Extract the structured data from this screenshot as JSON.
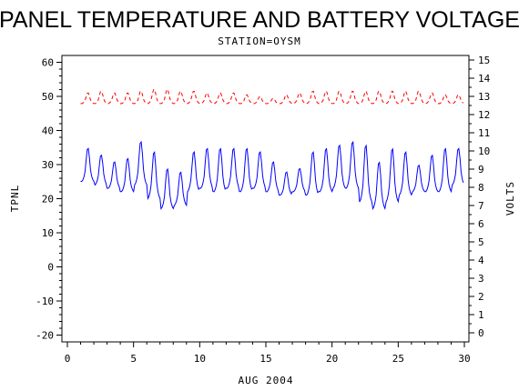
{
  "chart_data": {
    "type": "line",
    "title": "PANEL TEMPERATURE AND BATTERY VOLTAGE",
    "subtitle": "STATION=OYSM",
    "xlabel": "AUG 2004",
    "ylabel_left": "TPNL",
    "ylabel_right": "VOLTS",
    "xlim": [
      0,
      30
    ],
    "ylim_left": [
      -22,
      62
    ],
    "ylim_right": [
      -0.5,
      15.25
    ],
    "x_ticks": [
      0,
      5,
      10,
      15,
      20,
      25,
      30
    ],
    "y_left_ticks": [
      -20,
      -10,
      0,
      10,
      20,
      30,
      40,
      50,
      60
    ],
    "y_right_ticks": [
      0,
      1,
      2,
      3,
      4,
      5,
      6,
      7,
      8,
      9,
      10,
      11,
      12,
      13,
      14,
      15
    ],
    "series": [
      {
        "axis": "left",
        "color": "#0000ff",
        "style": "solid",
        "daily_peaks": [
          35,
          33,
          31,
          32,
          37,
          34,
          29,
          28,
          34,
          35,
          35,
          35,
          35,
          34,
          31,
          28,
          29,
          34,
          35,
          36,
          37,
          36,
          31,
          35,
          34,
          30,
          33,
          35,
          35
        ],
        "daily_troughs": [
          25,
          24,
          23,
          22,
          24,
          20,
          17,
          18,
          22,
          23,
          22,
          23,
          22,
          23,
          22,
          21,
          22,
          21,
          22,
          23,
          23,
          19,
          17,
          19,
          21,
          22,
          22,
          22,
          24
        ]
      },
      {
        "axis": "right",
        "color": "#ff0000",
        "style": "dashed",
        "daily_peaks": [
          13.2,
          13.3,
          13.2,
          13.2,
          13.3,
          13.4,
          13.4,
          13.3,
          13.3,
          13.2,
          13.2,
          13.2,
          13.1,
          13.0,
          12.9,
          13.1,
          13.2,
          13.3,
          13.3,
          13.3,
          13.3,
          13.3,
          13.3,
          13.3,
          13.3,
          13.3,
          13.2,
          13.1,
          13.1
        ],
        "daily_troughs": [
          12.6,
          12.6,
          12.6,
          12.6,
          12.6,
          12.6,
          12.6,
          12.6,
          12.6,
          12.6,
          12.6,
          12.6,
          12.6,
          12.6,
          12.6,
          12.6,
          12.6,
          12.6,
          12.6,
          12.6,
          12.6,
          12.6,
          12.6,
          12.6,
          12.6,
          12.6,
          12.6,
          12.6,
          12.6
        ]
      }
    ]
  }
}
